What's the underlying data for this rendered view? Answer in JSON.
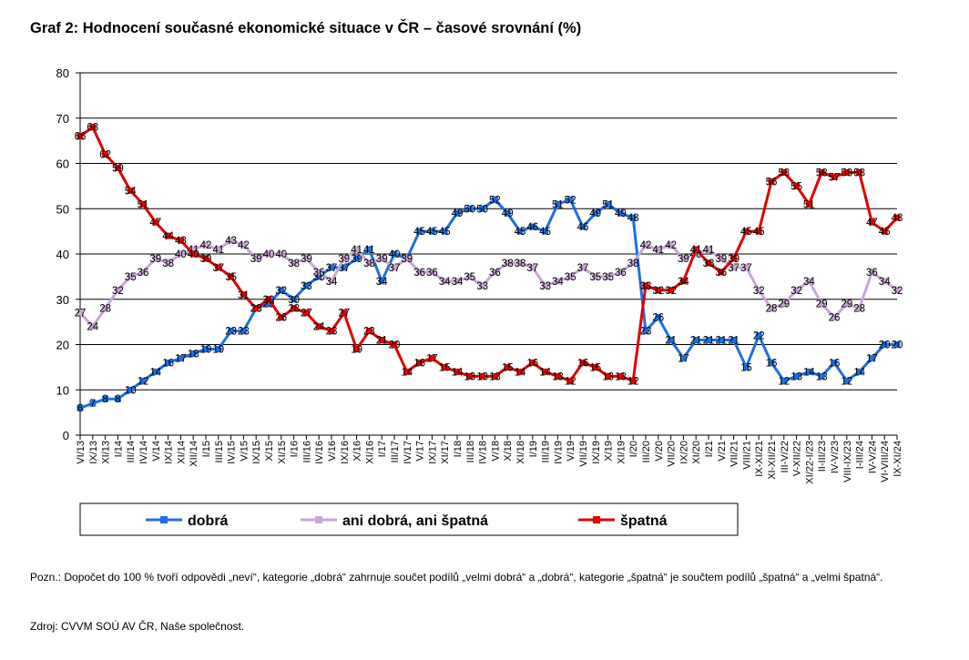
{
  "chart_data": {
    "type": "line",
    "title": "Graf 2: Hodnocení současné ekonomické situace v ČR – časové srovnání (%)",
    "categories": [
      "VI/13",
      "IX/13",
      "XI/13",
      "I/14",
      "III/14",
      "IV/14",
      "V/14",
      "IX/14",
      "XI/14",
      "XII/14",
      "I/15",
      "III/15",
      "IV/15",
      "V/15",
      "IX/15",
      "X/15",
      "XI/15",
      "I/16",
      "III/16",
      "IV/16",
      "V/16",
      "IX/16",
      "X/16",
      "XI/16",
      "I/17",
      "III/17",
      "IV/17",
      "V/17",
      "IX/17",
      "XI/17",
      "I/18",
      "III/18",
      "IV/18",
      "V/18",
      "X/18",
      "XI/18",
      "I/19",
      "III/19",
      "IV/19",
      "V/19",
      "VII/19",
      "IX/19",
      "X/19",
      "XI/19",
      "I/20",
      "III/20",
      "V/20",
      "VII/20",
      "IX/20",
      "XI/20",
      "I/21",
      "V/21",
      "VII/21",
      "VIII/21",
      "IX-XI/21",
      "XI-XII/21",
      "III-V/22",
      "V-XII/22",
      "XI/22-I/23",
      "II-III/23",
      "IV-V/23",
      "VIII-IX/23",
      "I-III/24",
      "IV-V/24",
      "VI-VIII/24",
      "IX-XI/24"
    ],
    "series": [
      {
        "name": "dobrá",
        "color": "#1f6fe0",
        "values": [
          6,
          7,
          8,
          8,
          10,
          12,
          14,
          16,
          17,
          18,
          19,
          19,
          23,
          23,
          28,
          29,
          32,
          30,
          33,
          35,
          37,
          37,
          39,
          41,
          34,
          40,
          39,
          45,
          45,
          45,
          49,
          50,
          50,
          52,
          49,
          45,
          46,
          45,
          51,
          52,
          46,
          49,
          51,
          49,
          48,
          23,
          26,
          21,
          17,
          21,
          21,
          21,
          21,
          15,
          22,
          16,
          12,
          13,
          14,
          13,
          16,
          12,
          14,
          17,
          20,
          20
        ]
      },
      {
        "name": "ani dobrá, ani špatná",
        "color": "#c9a6d6",
        "values": [
          27,
          24,
          28,
          32,
          35,
          36,
          39,
          38,
          40,
          41,
          42,
          41,
          43,
          42,
          39,
          40,
          40,
          38,
          39,
          36,
          34,
          39,
          41,
          38,
          39,
          37,
          39,
          36,
          36,
          34,
          34,
          35,
          33,
          36,
          38,
          38,
          37,
          33,
          34,
          35,
          37,
          35,
          35,
          36,
          38,
          42,
          41,
          42,
          39,
          40,
          41,
          39,
          37,
          37,
          32,
          28,
          29,
          32,
          34,
          29,
          26,
          29,
          28,
          36,
          34,
          32
        ]
      },
      {
        "name": "špatná",
        "color": "#e00000",
        "values": [
          66,
          68,
          62,
          59,
          54,
          51,
          47,
          44,
          43,
          40,
          39,
          37,
          35,
          31,
          28,
          30,
          26,
          28,
          27,
          24,
          23,
          27,
          19,
          23,
          21,
          20,
          14,
          16,
          17,
          15,
          14,
          13,
          13,
          13,
          15,
          14,
          16,
          14,
          13,
          12,
          16,
          15,
          13,
          13,
          12,
          33,
          32,
          32,
          34,
          41,
          38,
          36,
          39,
          45,
          45,
          56,
          58,
          55,
          51,
          58,
          57,
          58,
          58,
          47,
          45,
          48
        ]
      }
    ],
    "ylim": [
      0,
      80
    ],
    "yticks": [
      0,
      10,
      20,
      30,
      40,
      50,
      60,
      70,
      80
    ],
    "grid": true,
    "note": "Pozn.: Dopočet do 100 % tvoří odpovědi „neví“, kategorie „dobrá“ zahrnuje součet podílů „velmi dobrá“ a „dobrá“, kategorie „špatná“ je součtem podílů „špatná“ a „velmi špatná“.",
    "source": "Zdroj: CVVM SOÚ AV ČR, Naše společnost."
  }
}
